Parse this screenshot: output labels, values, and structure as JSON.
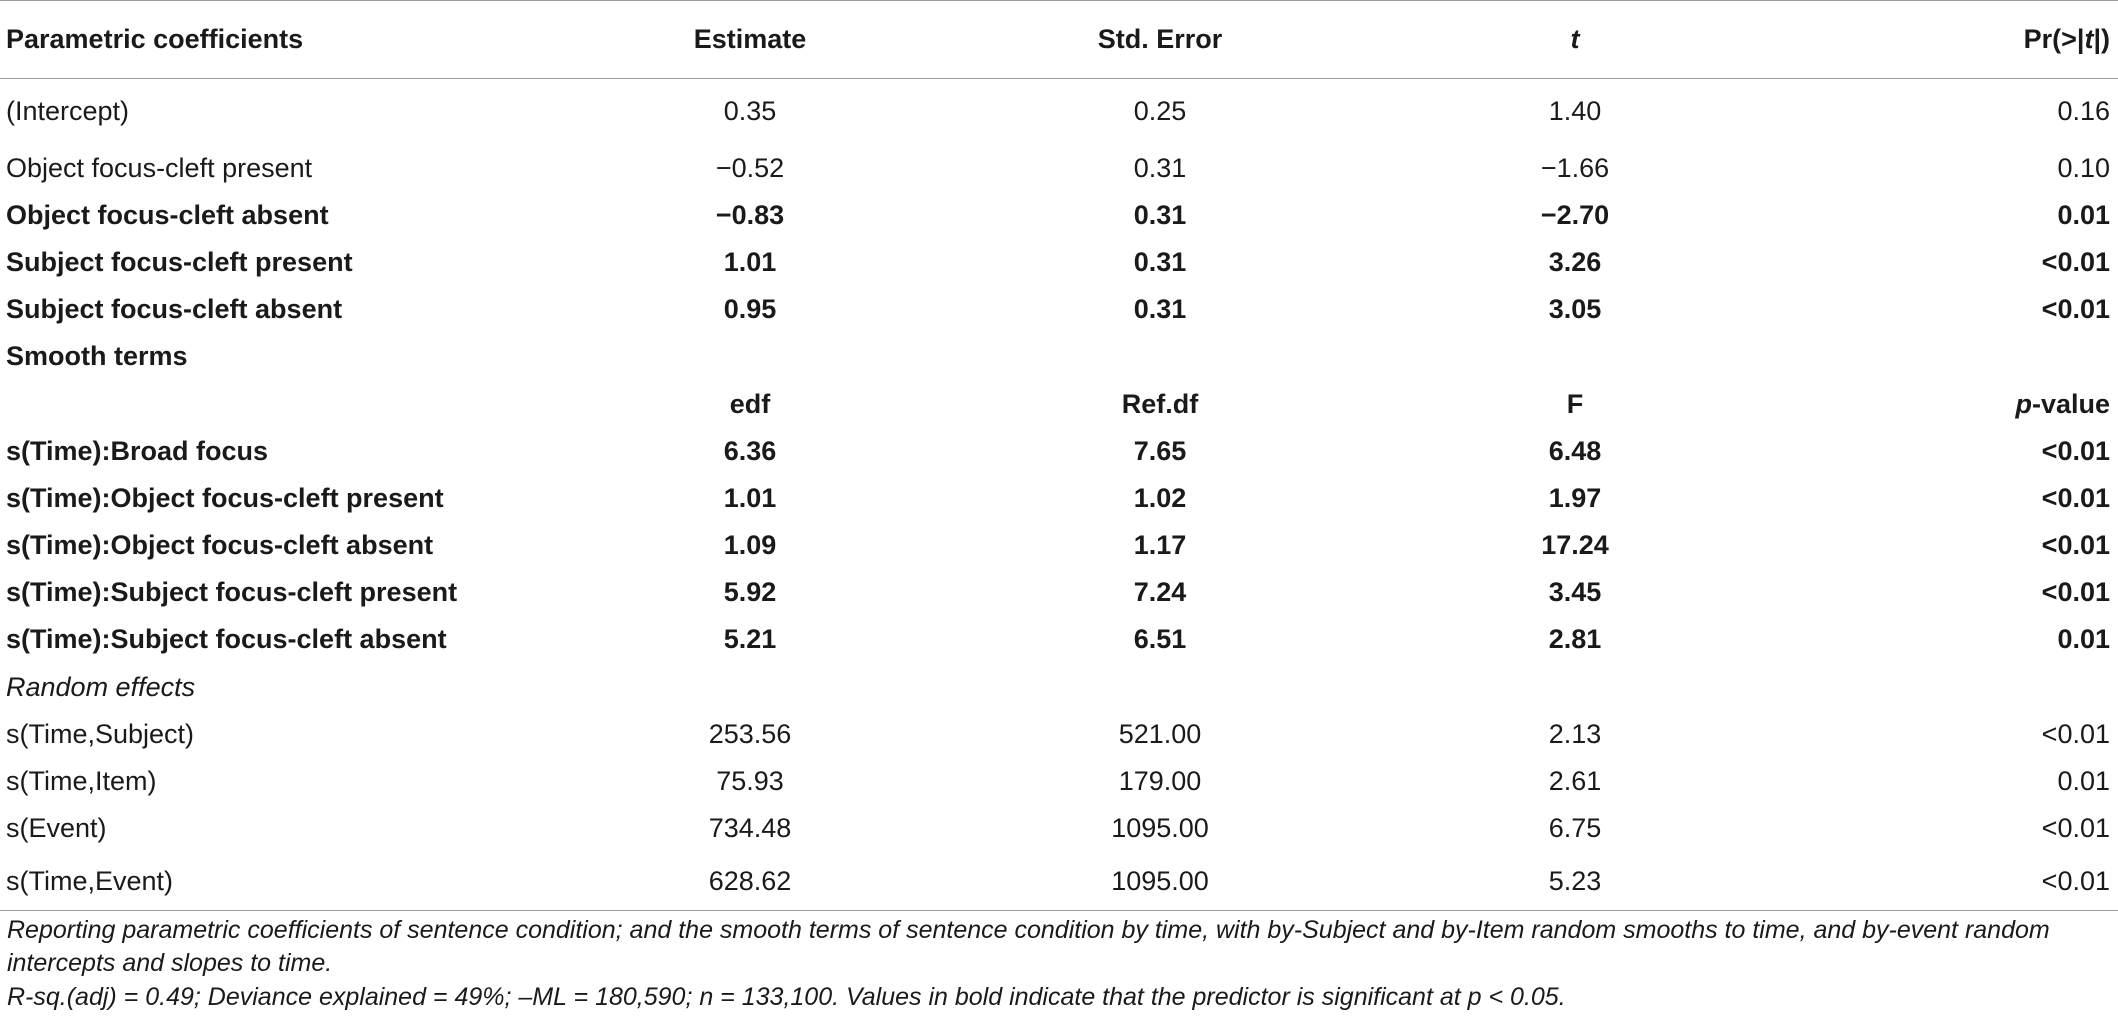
{
  "table": {
    "header": {
      "col0": "Parametric coefficients",
      "col1": "Estimate",
      "col2": "Std. Error",
      "col3": "t",
      "col4_pre": "Pr(>|",
      "col4_it": "t",
      "col4_post": "|)"
    },
    "parametric_rows": [
      {
        "label": "(Intercept)",
        "estimate": "0.35",
        "std_error": "0.25",
        "t": "1.40",
        "p": "0.16",
        "bold": false
      },
      {
        "label": "Object focus-cleft present",
        "estimate": "−0.52",
        "std_error": "0.31",
        "t": "−1.66",
        "p": "0.10",
        "bold": false
      },
      {
        "label": "Object focus-cleft absent",
        "estimate": "−0.83",
        "std_error": "0.31",
        "t": "−2.70",
        "p": "0.01",
        "bold": true
      },
      {
        "label": "Subject focus-cleft present",
        "estimate": "1.01",
        "std_error": "0.31",
        "t": "3.26",
        "p": "<0.01",
        "bold": true
      },
      {
        "label": "Subject focus-cleft absent",
        "estimate": "0.95",
        "std_error": "0.31",
        "t": "3.05",
        "p": "<0.01",
        "bold": true
      }
    ],
    "smooth_section_label": "Smooth terms",
    "smooth_header": {
      "col1": "edf",
      "col2": "Ref.df",
      "col3": "F",
      "col4_it": "p",
      "col4_post": "-value"
    },
    "smooth_rows": [
      {
        "label": "s(Time):Broad focus",
        "edf": "6.36",
        "ref_df": "7.65",
        "f": "6.48",
        "p": "<0.01"
      },
      {
        "label": "s(Time):Object focus-cleft present",
        "edf": "1.01",
        "ref_df": "1.02",
        "f": "1.97",
        "p": "<0.01"
      },
      {
        "label": "s(Time):Object focus-cleft absent",
        "edf": "1.09",
        "ref_df": "1.17",
        "f": "17.24",
        "p": "<0.01"
      },
      {
        "label": "s(Time):Subject focus-cleft present",
        "edf": "5.92",
        "ref_df": "7.24",
        "f": "3.45",
        "p": "<0.01"
      },
      {
        "label": "s(Time):Subject focus-cleft absent",
        "edf": "5.21",
        "ref_df": "6.51",
        "f": "2.81",
        "p": "0.01"
      }
    ],
    "random_section_label": "Random effects",
    "random_rows": [
      {
        "label": "s(Time,Subject)",
        "edf": "253.56",
        "ref_df": "521.00",
        "f": "2.13",
        "p": "<0.01"
      },
      {
        "label": "s(Time,Item)",
        "edf": "75.93",
        "ref_df": "179.00",
        "f": "2.61",
        "p": "0.01"
      },
      {
        "label": "s(Event)",
        "edf": "734.48",
        "ref_df": "1095.00",
        "f": "6.75",
        "p": "<0.01"
      },
      {
        "label": "s(Time,Event)",
        "edf": "628.62",
        "ref_df": "1095.00",
        "f": "5.23",
        "p": "<0.01"
      }
    ]
  },
  "notes": {
    "line1": "Reporting parametric coefficients of sentence condition; and the smooth terms of sentence condition by time, with by-Subject and by-Item random smooths to time, and by-event random intercepts and slopes to time.",
    "line2": "R-sq.(adj) = 0.49; Deviance explained = 49%; –ML = 180,590; n = 133,100. Values in bold indicate that the predictor is significant at p < 0.05."
  }
}
